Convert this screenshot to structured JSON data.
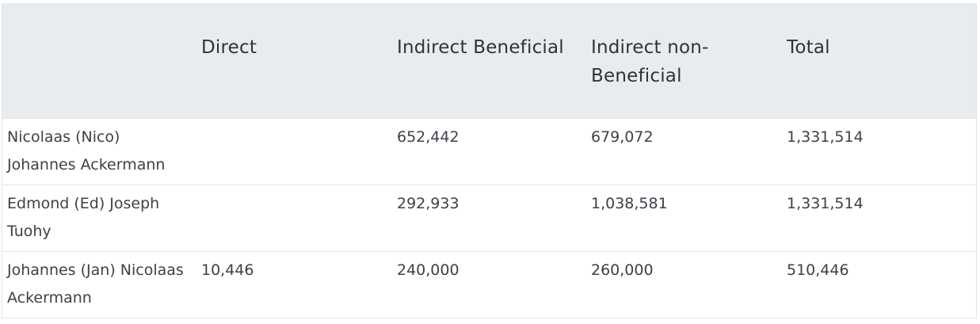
{
  "table": {
    "headers": [
      "",
      "Direct",
      "Indirect Beneficial",
      "Indirect non-Beneficial",
      "Total"
    ],
    "rows": [
      {
        "name": "Nicolaas (Nico) Johannes Ackermann",
        "direct": "",
        "indirect_beneficial": "652,442",
        "indirect_non_beneficial": "679,072",
        "total": "1,331,514"
      },
      {
        "name": "Edmond (Ed) Joseph Tuohy",
        "direct": "",
        "indirect_beneficial": "292,933",
        "indirect_non_beneficial": "1,038,581",
        "total": "1,331,514"
      },
      {
        "name": "Johannes (Jan) Nicolaas Ackermann",
        "direct": "10,446",
        "indirect_beneficial": "240,000",
        "indirect_non_beneficial": "260,000",
        "total": "510,446"
      }
    ]
  }
}
